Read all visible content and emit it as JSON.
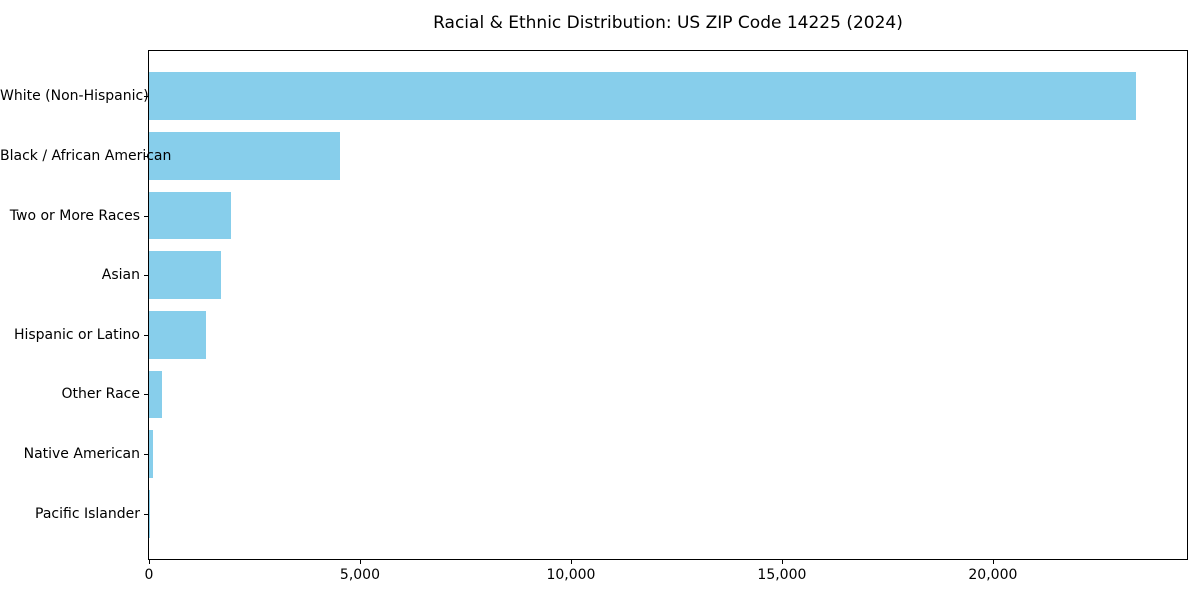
{
  "chart_data": {
    "type": "bar",
    "orientation": "horizontal",
    "title": "Racial & Ethnic Distribution: US ZIP Code 14225 (2024)",
    "categories": [
      "White (Non-Hispanic)",
      "Black / African American",
      "Two or More Races",
      "Asian",
      "Hispanic or Latino",
      "Other Race",
      "Native American",
      "Pacific Islander"
    ],
    "values": [
      23400,
      4530,
      1940,
      1710,
      1350,
      310,
      100,
      10
    ],
    "bar_color": "#87CEEB",
    "xlim": [
      0,
      24600
    ],
    "x_ticks": [
      0,
      5000,
      10000,
      15000,
      20000
    ],
    "x_tick_labels": [
      "0",
      "5,000",
      "10,000",
      "15,000",
      "20,000"
    ],
    "xlabel": "",
    "ylabel": "",
    "grid": false,
    "legend": null
  }
}
